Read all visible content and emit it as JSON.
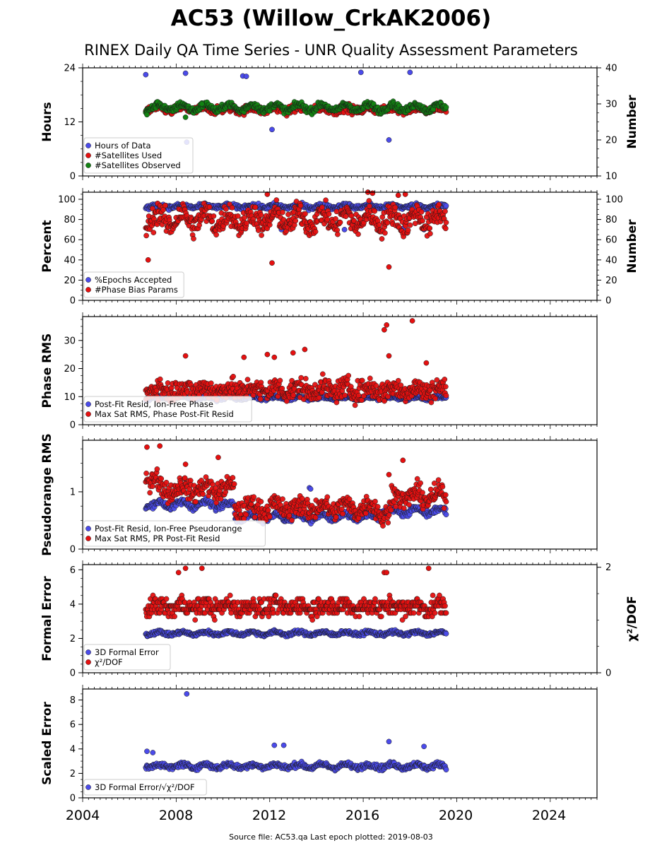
{
  "title": "AC53 (Willow_CrkAK2006)",
  "subtitle": "RINEX Daily QA Time Series - UNR Quality Assessment Parameters",
  "footer": "Source file: AC53.qa Last epoch plotted: 2019-08-03",
  "x_ticks": [
    "2004",
    "2008",
    "2012",
    "2016",
    "2020",
    "2024"
  ],
  "colors": {
    "blue": "#4b4bea",
    "red": "#e51010",
    "green": "#128212",
    "edge": "#1a1a1a"
  },
  "chart_data": [
    {
      "type": "scatter",
      "ylabel": "Hours",
      "ylabel_right": "Number",
      "xlim": [
        2004,
        2026
      ],
      "ylim": [
        0,
        24
      ],
      "yticks": [
        "0",
        "12",
        "24"
      ],
      "yticks_values": [
        0,
        12,
        24
      ],
      "ylim_right": [
        10,
        40
      ],
      "yticks_right": [
        "10",
        "20",
        "30",
        "40"
      ],
      "yticks_right_values": [
        10,
        20,
        30,
        40
      ],
      "legend_loc": "lower-left",
      "series": [
        {
          "name": "Hours of Data",
          "color": "blue",
          "axis": "left",
          "start": 2006.7,
          "end": 2019.55,
          "baseline": 23.9,
          "amp": 0.05,
          "noise": 0.08,
          "outliers": [
            [
              2006.7,
              22.5
            ],
            [
              2008.4,
              22.8
            ],
            [
              2010.85,
              22.2
            ],
            [
              2011.0,
              22.1
            ],
            [
              2012.1,
              10.3
            ],
            [
              2017.1,
              8.0
            ],
            [
              2018.0,
              23.0
            ],
            [
              2008.45,
              7.5
            ],
            [
              2015.9,
              23.0
            ]
          ]
        },
        {
          "name": "#Satellites Used",
          "color": "red",
          "axis": "right",
          "start": 2006.7,
          "end": 2019.55,
          "baseline": 28.5,
          "amp": 0.5,
          "noise": 0.8,
          "outliers": []
        },
        {
          "name": "#Satellites Observed",
          "color": "green",
          "axis": "right",
          "start": 2006.7,
          "end": 2019.55,
          "baseline": 29.0,
          "amp": 0.9,
          "noise": 0.6,
          "outliers": [
            [
              2006.75,
              27.0
            ],
            [
              2008.4,
              26.3
            ],
            [
              2009.1,
              30.0
            ]
          ]
        }
      ]
    },
    {
      "type": "scatter",
      "ylabel": "Percent",
      "ylabel_right": "Number",
      "xlim": [
        2004,
        2026
      ],
      "ylim": [
        0,
        107
      ],
      "yticks": [
        "0",
        "20",
        "40",
        "60",
        "80",
        "100"
      ],
      "yticks_values": [
        0,
        20,
        40,
        60,
        80,
        100
      ],
      "ylim_right": [
        0,
        107
      ],
      "yticks_right": [
        "0",
        "20",
        "40",
        "60",
        "80",
        "100"
      ],
      "yticks_right_values": [
        0,
        20,
        40,
        60,
        80,
        100
      ],
      "legend_loc": "lower-left",
      "series": [
        {
          "name": "%Epochs Accepted",
          "color": "blue",
          "axis": "left",
          "start": 2006.7,
          "end": 2019.55,
          "baseline": 93,
          "amp": 1.2,
          "noise": 1.5,
          "outliers": [
            [
              2012.5,
              70
            ],
            [
              2015.2,
              70
            ],
            [
              2017.7,
              71
            ],
            [
              2018.6,
              70
            ]
          ]
        },
        {
          "name": "#Phase Bias Params",
          "color": "red",
          "axis": "right",
          "start": 2006.7,
          "end": 2019.55,
          "baseline": 80,
          "amp": 7,
          "noise": 8,
          "outliers": [
            [
              2006.8,
              40
            ],
            [
              2012.1,
              37
            ],
            [
              2017.1,
              33
            ],
            [
              2011.9,
              105
            ],
            [
              2016.2,
              107
            ],
            [
              2016.4,
              106
            ],
            [
              2017.5,
              104
            ],
            [
              2017.8,
              105
            ]
          ]
        }
      ]
    },
    {
      "type": "scatter",
      "ylabel": "Phase RMS",
      "xlim": [
        2004,
        2026
      ],
      "ylim": [
        0,
        38.5
      ],
      "yticks": [
        "0",
        "10",
        "20",
        "30"
      ],
      "yticks_values": [
        0,
        10,
        20,
        30
      ],
      "legend_loc": "lower-left",
      "series": [
        {
          "name": "Post-Fit Resid, Ion-Free Phase",
          "color": "blue",
          "axis": "left",
          "start": 2006.7,
          "end": 2019.55,
          "baseline": 9.5,
          "amp": 0.4,
          "noise": 0.4,
          "outliers": []
        },
        {
          "name": "Max Sat RMS, Phase Post-Fit Resid",
          "color": "red",
          "axis": "left",
          "start": 2006.7,
          "end": 2019.55,
          "baseline": 12.5,
          "amp": 1.0,
          "noise": 2.6,
          "outliers": [
            [
              2008.4,
              24.5
            ],
            [
              2011.9,
              25
            ],
            [
              2012.2,
              24
            ],
            [
              2013.0,
              25.6
            ],
            [
              2013.5,
              26.8
            ],
            [
              2016.9,
              33.8
            ],
            [
              2017.0,
              35.5
            ],
            [
              2018.1,
              37
            ],
            [
              2017.1,
              24.5
            ],
            [
              2018.7,
              22
            ],
            [
              2010.9,
              24
            ]
          ]
        }
      ]
    },
    {
      "type": "scatter",
      "ylabel": "Pseudorange RMS",
      "xlim": [
        2004,
        2026
      ],
      "ylim": [
        0,
        1.9
      ],
      "yticks": [
        "0",
        "1"
      ],
      "yticks_values": [
        0,
        1
      ],
      "legend_loc": "lower-left",
      "series": [
        {
          "name": "Post-Fit Resid, Ion-Free Pseudorange",
          "color": "blue",
          "axis": "left",
          "start": 2006.7,
          "end": 2019.55,
          "baseline": 0.78,
          "amp": 0.05,
          "noise": 0.04,
          "segments": [
            [
              2006.7,
              2010.5,
              0.78
            ],
            [
              2010.5,
              2016.7,
              0.56
            ],
            [
              2016.7,
              2019.55,
              0.66
            ]
          ],
          "outliers": [
            [
              2013.7,
              1.07
            ],
            [
              2013.75,
              1.05
            ]
          ]
        },
        {
          "name": "Max Sat RMS, PR Post-Fit Resid",
          "color": "red",
          "axis": "left",
          "start": 2006.7,
          "end": 2019.55,
          "baseline": 1.05,
          "amp": 0.08,
          "noise": 0.12,
          "segments": [
            [
              2006.7,
              2007.2,
              1.25
            ],
            [
              2007.2,
              2010.5,
              1.05
            ],
            [
              2010.5,
              2016.7,
              0.72
            ],
            [
              2016.7,
              2017.2,
              0.62
            ],
            [
              2017.2,
              2019.55,
              0.92
            ]
          ],
          "outliers": [
            [
              2006.75,
              1.78
            ],
            [
              2007.3,
              1.8
            ],
            [
              2008.4,
              1.48
            ],
            [
              2009.8,
              1.6
            ],
            [
              2017.1,
              1.3
            ],
            [
              2017.7,
              1.55
            ]
          ]
        }
      ]
    },
    {
      "type": "scatter",
      "ylabel": "Formal Error",
      "ylabel_right": "χ²/DOF",
      "xlim": [
        2004,
        2026
      ],
      "ylim": [
        0,
        6.3
      ],
      "yticks": [
        "0",
        "2",
        "4",
        "6"
      ],
      "yticks_values": [
        0,
        2,
        4,
        6
      ],
      "ylim_right": [
        0,
        2.05
      ],
      "yticks_right": [
        "0",
        "2"
      ],
      "yticks_right_values": [
        0,
        2
      ],
      "legend_loc": "lower-left",
      "series": [
        {
          "name": "3D Formal Error",
          "color": "blue",
          "axis": "left",
          "start": 2006.7,
          "end": 2019.55,
          "baseline": 2.3,
          "amp": 0.08,
          "noise": 0.08,
          "outliers": []
        },
        {
          "name": "χ²/DOF",
          "color": "red",
          "axis": "right",
          "start": 2006.7,
          "end": 2019.55,
          "baseline": 1.25,
          "amp": 0.05,
          "noise": 0.12,
          "quantize": 0.0667,
          "outliers": [
            [
              2008.1,
              1.9
            ],
            [
              2008.4,
              1.98
            ],
            [
              2009.1,
              1.98
            ],
            [
              2016.9,
              1.9
            ],
            [
              2017.0,
              1.9
            ],
            [
              2018.8,
              1.98
            ]
          ]
        }
      ]
    },
    {
      "type": "scatter",
      "ylabel": "Scaled Error",
      "xlim": [
        2004,
        2026
      ],
      "ylim": [
        0,
        8.9
      ],
      "yticks": [
        "0",
        "2",
        "4",
        "6",
        "8"
      ],
      "yticks_values": [
        0,
        2,
        4,
        6,
        8
      ],
      "legend_loc": "lower-left",
      "series": [
        {
          "name": "3D Formal Error/√χ²/DOF",
          "color": "blue",
          "axis": "left",
          "start": 2006.7,
          "end": 2019.55,
          "baseline": 2.6,
          "amp": 0.15,
          "noise": 0.15,
          "outliers": [
            [
              2008.45,
              8.5
            ],
            [
              2006.75,
              3.8
            ],
            [
              2007.0,
              3.7
            ],
            [
              2012.2,
              4.3
            ],
            [
              2012.6,
              4.3
            ],
            [
              2017.1,
              4.6
            ],
            [
              2018.6,
              4.2
            ]
          ]
        }
      ]
    }
  ]
}
